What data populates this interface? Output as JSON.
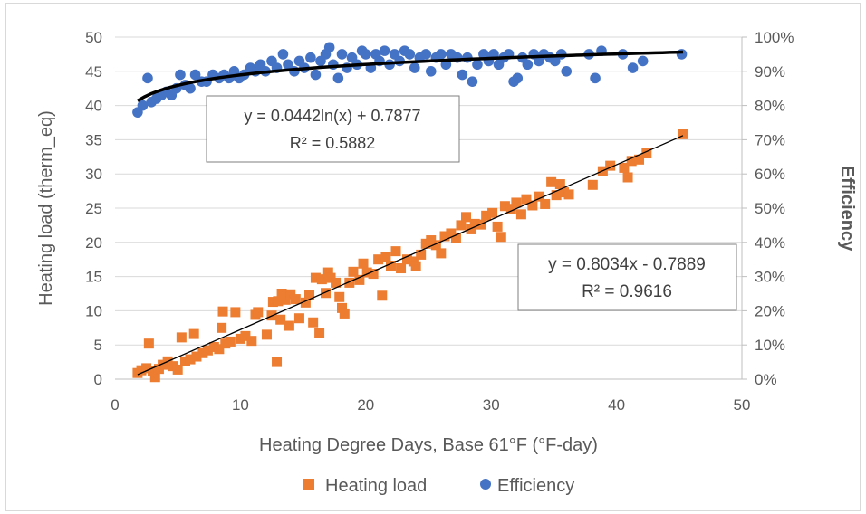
{
  "chart_data": {
    "type": "scatter",
    "xlabel": "Heating Degree Days, Base 61°F (°F-day)",
    "ylabel_left": "Heating load (therm_eq)",
    "ylabel_right": "Efficiency",
    "xlim": [
      0,
      50
    ],
    "ylim_left": [
      0,
      50
    ],
    "ylim_right": [
      0,
      1
    ],
    "x_ticks": [
      "0",
      "10",
      "20",
      "30",
      "40",
      "50"
    ],
    "y_left_ticks": [
      "0",
      "5",
      "10",
      "15",
      "20",
      "25",
      "30",
      "35",
      "40",
      "45",
      "50"
    ],
    "y_right_ticks": [
      "0%",
      "10%",
      "20%",
      "30%",
      "40%",
      "50%",
      "60%",
      "70%",
      "80%",
      "90%",
      "100%"
    ],
    "grid": "horizontal gridlines",
    "legend_position": "bottom",
    "colors": {
      "heating_load": "#ED7D31",
      "efficiency": "#4472C4",
      "trendline": "#000000"
    },
    "series": [
      {
        "name": "Heating load",
        "axis": "left",
        "marker": "square",
        "points": [
          [
            1.8,
            0.9
          ],
          [
            2.1,
            1.3
          ],
          [
            2.5,
            1.6
          ],
          [
            2.7,
            5.2
          ],
          [
            3.0,
            1.2
          ],
          [
            3.2,
            0.3
          ],
          [
            3.5,
            1.5
          ],
          [
            3.8,
            2.1
          ],
          [
            4.2,
            2.6
          ],
          [
            4.6,
            1.9
          ],
          [
            5.0,
            1.4
          ],
          [
            5.3,
            6.1
          ],
          [
            5.6,
            2.6
          ],
          [
            6.0,
            2.9
          ],
          [
            6.3,
            6.6
          ],
          [
            6.5,
            3.3
          ],
          [
            7.0,
            3.8
          ],
          [
            7.4,
            4.2
          ],
          [
            7.9,
            4.7
          ],
          [
            8.3,
            4.4
          ],
          [
            8.5,
            7.5
          ],
          [
            8.6,
            9.9
          ],
          [
            8.8,
            5.2
          ],
          [
            9.2,
            5.5
          ],
          [
            9.6,
            9.8
          ],
          [
            10.0,
            5.9
          ],
          [
            10.4,
            6.3
          ],
          [
            10.9,
            5.6
          ],
          [
            11.2,
            9.4
          ],
          [
            11.4,
            9.8
          ],
          [
            12.1,
            6.5
          ],
          [
            12.5,
            9.3
          ],
          [
            12.6,
            11.3
          ],
          [
            12.9,
            2.5
          ],
          [
            13.0,
            11.4
          ],
          [
            13.2,
            8.7
          ],
          [
            13.3,
            12.5
          ],
          [
            13.6,
            11.6
          ],
          [
            13.9,
            7.8
          ],
          [
            14.0,
            12.4
          ],
          [
            14.4,
            11.7
          ],
          [
            14.7,
            8.9
          ],
          [
            15.2,
            11.2
          ],
          [
            15.5,
            12.3
          ],
          [
            15.8,
            8.3
          ],
          [
            16.0,
            14.8
          ],
          [
            16.3,
            6.7
          ],
          [
            16.5,
            14.6
          ],
          [
            16.8,
            12.6
          ],
          [
            17.0,
            15.6
          ],
          [
            17.2,
            14.8
          ],
          [
            17.6,
            14.1
          ],
          [
            17.9,
            12.0
          ],
          [
            18.1,
            10.4
          ],
          [
            18.3,
            9.6
          ],
          [
            18.7,
            14.1
          ],
          [
            19.0,
            15.7
          ],
          [
            19.5,
            14.5
          ],
          [
            19.8,
            16.9
          ],
          [
            20.1,
            15.6
          ],
          [
            20.6,
            15.4
          ],
          [
            21.0,
            17.5
          ],
          [
            21.3,
            12.2
          ],
          [
            21.6,
            17.8
          ],
          [
            22.0,
            16.6
          ],
          [
            22.4,
            18.7
          ],
          [
            22.8,
            16.2
          ],
          [
            23.3,
            17.5
          ],
          [
            23.8,
            17.2
          ],
          [
            24.0,
            16.5
          ],
          [
            24.4,
            18.2
          ],
          [
            24.8,
            19.8
          ],
          [
            25.2,
            20.3
          ],
          [
            25.6,
            19.6
          ],
          [
            26.0,
            18.4
          ],
          [
            26.3,
            20.9
          ],
          [
            26.8,
            21.3
          ],
          [
            27.2,
            20.6
          ],
          [
            27.6,
            22.5
          ],
          [
            28.0,
            23.7
          ],
          [
            28.4,
            21.9
          ],
          [
            28.7,
            22.7
          ],
          [
            29.2,
            22.6
          ],
          [
            29.6,
            23.9
          ],
          [
            30.1,
            24.3
          ],
          [
            30.5,
            22.3
          ],
          [
            30.8,
            20.8
          ],
          [
            31.1,
            25.3
          ],
          [
            31.6,
            24.9
          ],
          [
            32.0,
            25.8
          ],
          [
            32.4,
            24.1
          ],
          [
            32.8,
            26.3
          ],
          [
            33.3,
            25.4
          ],
          [
            33.8,
            26.7
          ],
          [
            34.3,
            25.6
          ],
          [
            34.8,
            28.8
          ],
          [
            35.2,
            26.9
          ],
          [
            35.5,
            28.5
          ],
          [
            35.8,
            27.3
          ],
          [
            36.2,
            27.0
          ],
          [
            38.1,
            28.4
          ],
          [
            38.9,
            30.4
          ],
          [
            39.5,
            31.2
          ],
          [
            40.6,
            30.9
          ],
          [
            40.9,
            29.5
          ],
          [
            41.2,
            31.9
          ],
          [
            41.8,
            32.1
          ],
          [
            42.4,
            33.0
          ],
          [
            45.3,
            35.8
          ]
        ]
      },
      {
        "name": "Efficiency",
        "axis": "right",
        "marker": "circle",
        "points": [
          [
            1.8,
            0.78
          ],
          [
            2.2,
            0.8
          ],
          [
            2.6,
            0.88
          ],
          [
            2.9,
            0.81
          ],
          [
            3.3,
            0.82
          ],
          [
            3.7,
            0.83
          ],
          [
            4.1,
            0.84
          ],
          [
            4.5,
            0.83
          ],
          [
            4.9,
            0.85
          ],
          [
            5.2,
            0.89
          ],
          [
            5.6,
            0.86
          ],
          [
            6.0,
            0.85
          ],
          [
            6.4,
            0.89
          ],
          [
            6.9,
            0.87
          ],
          [
            7.3,
            0.87
          ],
          [
            7.8,
            0.89
          ],
          [
            8.3,
            0.88
          ],
          [
            8.7,
            0.89
          ],
          [
            9.1,
            0.88
          ],
          [
            9.5,
            0.9
          ],
          [
            9.9,
            0.88
          ],
          [
            10.3,
            0.89
          ],
          [
            10.8,
            0.91
          ],
          [
            11.2,
            0.9
          ],
          [
            11.6,
            0.92
          ],
          [
            12.0,
            0.9
          ],
          [
            12.5,
            0.93
          ],
          [
            12.9,
            0.91
          ],
          [
            13.4,
            0.95
          ],
          [
            13.8,
            0.92
          ],
          [
            14.3,
            0.9
          ],
          [
            14.7,
            0.93
          ],
          [
            15.1,
            0.91
          ],
          [
            15.6,
            0.94
          ],
          [
            16.0,
            0.89
          ],
          [
            16.4,
            0.93
          ],
          [
            16.8,
            0.95
          ],
          [
            17.1,
            0.97
          ],
          [
            17.4,
            0.92
          ],
          [
            17.8,
            0.88
          ],
          [
            18.1,
            0.95
          ],
          [
            18.5,
            0.91
          ],
          [
            18.9,
            0.94
          ],
          [
            19.3,
            0.92
          ],
          [
            19.7,
            0.96
          ],
          [
            20.0,
            0.95
          ],
          [
            20.4,
            0.91
          ],
          [
            20.8,
            0.95
          ],
          [
            21.1,
            0.93
          ],
          [
            21.5,
            0.96
          ],
          [
            21.9,
            0.92
          ],
          [
            22.3,
            0.95
          ],
          [
            22.7,
            0.93
          ],
          [
            23.1,
            0.96
          ],
          [
            23.5,
            0.95
          ],
          [
            23.9,
            0.91
          ],
          [
            24.3,
            0.94
          ],
          [
            24.8,
            0.95
          ],
          [
            25.2,
            0.9
          ],
          [
            25.6,
            0.94
          ],
          [
            26.0,
            0.95
          ],
          [
            26.4,
            0.92
          ],
          [
            26.8,
            0.95
          ],
          [
            27.3,
            0.94
          ],
          [
            27.7,
            0.89
          ],
          [
            28.1,
            0.94
          ],
          [
            28.5,
            0.87
          ],
          [
            28.9,
            0.92
          ],
          [
            29.4,
            0.95
          ],
          [
            29.8,
            0.93
          ],
          [
            30.2,
            0.95
          ],
          [
            30.6,
            0.92
          ],
          [
            31.0,
            0.94
          ],
          [
            31.4,
            0.95
          ],
          [
            31.8,
            0.87
          ],
          [
            32.1,
            0.88
          ],
          [
            32.5,
            0.94
          ],
          [
            32.9,
            0.92
          ],
          [
            33.4,
            0.95
          ],
          [
            33.8,
            0.93
          ],
          [
            34.2,
            0.95
          ],
          [
            34.7,
            0.94
          ],
          [
            35.1,
            0.93
          ],
          [
            35.6,
            0.95
          ],
          [
            36.0,
            0.9
          ],
          [
            37.8,
            0.95
          ],
          [
            38.3,
            0.88
          ],
          [
            38.8,
            0.96
          ],
          [
            40.5,
            0.95
          ],
          [
            41.3,
            0.91
          ],
          [
            42.1,
            0.93
          ],
          [
            45.2,
            0.95
          ]
        ]
      }
    ],
    "trendlines": [
      {
        "series": "Heating load",
        "kind": "linear",
        "slope": 0.8034,
        "intercept": -0.7889,
        "x_range": [
          1.8,
          45.3
        ],
        "label_line1": "y = 0.8034x - 0.7889",
        "label_line2": "R² = 0.9616"
      },
      {
        "series": "Efficiency",
        "kind": "log",
        "a": 0.0442,
        "b": 0.7877,
        "x_range": [
          1.8,
          45.3
        ],
        "label_line1": "y = 0.0442ln(x) + 0.7877",
        "label_line2": "R² = 0.5882"
      }
    ],
    "legend": [
      {
        "label": "Heating load",
        "marker": "square"
      },
      {
        "label": "Efficiency",
        "marker": "circle"
      }
    ]
  }
}
